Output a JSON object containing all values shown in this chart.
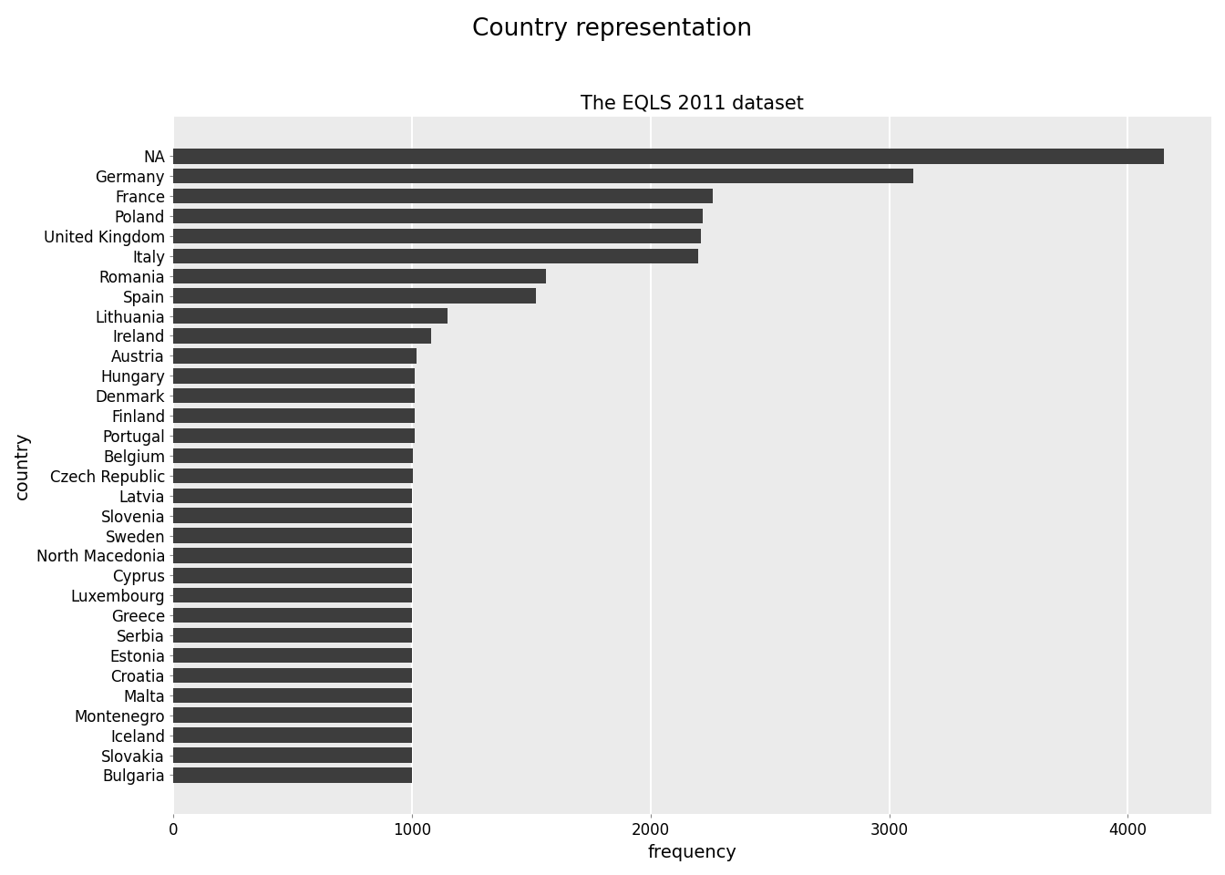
{
  "title": "Country representation",
  "subtitle": "The EQLS 2011 dataset",
  "xlabel": "frequency",
  "ylabel": "country",
  "bar_color": "#3d3d3d",
  "background_color": "#ffffff",
  "plot_background": "#ebebeb",
  "panel_background": "#ebebeb",
  "gridline_color": "#ffffff",
  "stripe_color_1": "#e0e0e0",
  "stripe_color_2": "#ebebeb",
  "categories": [
    "NA",
    "Germany",
    "France",
    "Poland",
    "United Kingdom",
    "Italy",
    "Romania",
    "Spain",
    "Lithuania",
    "Ireland",
    "Austria",
    "Hungary",
    "Denmark",
    "Finland",
    "Portugal",
    "Belgium",
    "Czech Republic",
    "Latvia",
    "Slovenia",
    "Sweden",
    "North Macedonia",
    "Cyprus",
    "Luxembourg",
    "Greece",
    "Serbia",
    "Estonia",
    "Croatia",
    "Malta",
    "Montenegro",
    "Iceland",
    "Slovakia",
    "Bulgaria"
  ],
  "values": [
    4150,
    3100,
    2260,
    2220,
    2210,
    2200,
    1560,
    1520,
    1150,
    1080,
    1020,
    1010,
    1010,
    1010,
    1010,
    1005,
    1005,
    1000,
    1000,
    1000,
    1000,
    1000,
    1000,
    1000,
    1000,
    1000,
    1000,
    1000,
    1000,
    1000,
    1000,
    1000
  ],
  "xlim": [
    0,
    4350
  ],
  "xticks": [
    0,
    1000,
    2000,
    3000,
    4000
  ],
  "title_fontsize": 19,
  "subtitle_fontsize": 15,
  "axis_label_fontsize": 14,
  "tick_fontsize": 12
}
